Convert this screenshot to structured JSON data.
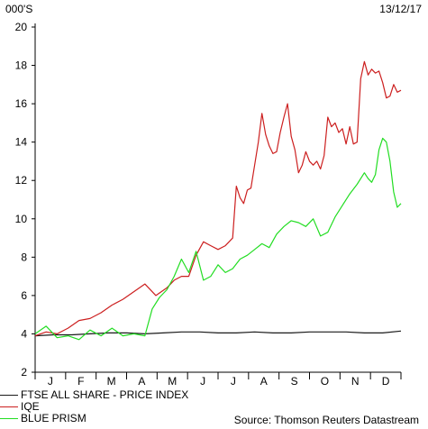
{
  "header": {
    "unit_label": "000'S",
    "date_label": "13/12/17"
  },
  "source": "Source: Thomson Reuters Datastream",
  "colors": {
    "ftse": "#1a1a1a",
    "iqe": "#cc1f1f",
    "blue_prism": "#22dd22"
  },
  "chart_data": {
    "type": "line",
    "title": "",
    "xlabel": "",
    "ylabel": "000'S",
    "ylim": [
      2,
      20
    ],
    "yticks": [
      2,
      4,
      6,
      8,
      10,
      12,
      14,
      16,
      18,
      20
    ],
    "xticks": [
      "J",
      "F",
      "M",
      "A",
      "M",
      "J",
      "J",
      "A",
      "S",
      "O",
      "N",
      "D"
    ],
    "x_index_range": [
      0,
      100
    ],
    "grid": false,
    "legend_position": "bottom-left",
    "series": [
      {
        "name": "FTSE ALL SHARE - PRICE INDEX",
        "color": "#1a1a1a",
        "x": [
          0,
          5,
          10,
          15,
          20,
          25,
          30,
          35,
          40,
          45,
          50,
          55,
          60,
          65,
          70,
          75,
          80,
          85,
          90,
          95,
          100
        ],
        "y": [
          3.9,
          3.95,
          3.95,
          4.0,
          4.05,
          4.05,
          4.0,
          4.05,
          4.1,
          4.1,
          4.05,
          4.05,
          4.1,
          4.05,
          4.05,
          4.1,
          4.1,
          4.1,
          4.05,
          4.05,
          4.15
        ]
      },
      {
        "name": "IQE",
        "color": "#cc1f1f",
        "x": [
          0,
          3,
          6,
          9,
          12,
          15,
          18,
          21,
          24,
          27,
          30,
          33,
          36,
          38,
          40,
          42,
          44,
          46,
          48,
          50,
          52,
          54,
          55,
          56,
          57,
          58,
          59,
          60,
          61,
          62,
          63,
          64,
          65,
          66,
          67,
          68,
          69,
          70,
          71,
          72,
          73,
          74,
          75,
          76,
          77,
          78,
          79,
          80,
          81,
          82,
          83,
          84,
          85,
          86,
          87,
          88,
          89,
          90,
          91,
          92,
          93,
          94,
          95,
          96,
          97,
          98,
          99,
          100
        ],
        "y": [
          3.9,
          4.1,
          4.0,
          4.3,
          4.7,
          4.8,
          5.1,
          5.5,
          5.8,
          6.2,
          6.6,
          6.0,
          6.4,
          6.8,
          7.0,
          7.0,
          8.1,
          8.8,
          8.6,
          8.4,
          8.6,
          9.0,
          11.7,
          11.1,
          10.8,
          11.5,
          11.6,
          12.8,
          14.0,
          15.5,
          14.4,
          13.8,
          13.4,
          13.5,
          14.5,
          15.3,
          16.0,
          14.3,
          13.6,
          12.4,
          12.8,
          13.5,
          13.0,
          12.8,
          13.0,
          12.6,
          13.3,
          15.3,
          14.8,
          15.0,
          14.5,
          14.7,
          13.9,
          14.8,
          13.9,
          14.0,
          17.3,
          18.2,
          17.5,
          17.8,
          17.6,
          17.7,
          17.1,
          16.3,
          16.4,
          17.0,
          16.6,
          16.7
        ]
      },
      {
        "name": "BLUE PRISM",
        "color": "#22dd22",
        "x": [
          0,
          3,
          6,
          9,
          12,
          15,
          18,
          21,
          24,
          27,
          30,
          32,
          34,
          36,
          38,
          40,
          42,
          44,
          46,
          48,
          50,
          52,
          54,
          56,
          58,
          60,
          62,
          64,
          66,
          68,
          70,
          72,
          74,
          76,
          78,
          80,
          82,
          84,
          86,
          88,
          90,
          91,
          92,
          93,
          94,
          95,
          96,
          97,
          98,
          99,
          100
        ],
        "y": [
          4.0,
          4.4,
          3.8,
          3.9,
          3.7,
          4.2,
          3.9,
          4.3,
          3.9,
          4.0,
          3.9,
          5.3,
          5.9,
          6.3,
          7.0,
          7.9,
          7.2,
          8.3,
          6.8,
          7.0,
          7.6,
          7.2,
          7.4,
          7.9,
          8.1,
          8.4,
          8.7,
          8.5,
          9.2,
          9.6,
          9.9,
          9.8,
          9.6,
          10.0,
          9.1,
          9.3,
          10.1,
          10.7,
          11.3,
          11.8,
          12.4,
          12.1,
          11.9,
          12.3,
          13.6,
          14.2,
          14.0,
          13.0,
          11.4,
          10.6,
          10.8
        ]
      }
    ]
  }
}
